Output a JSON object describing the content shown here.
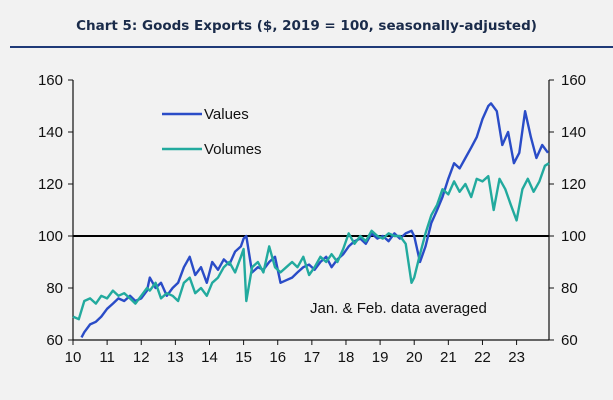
{
  "title": "Chart 5: Goods Exports ($, 2019 = 100, seasonally-adjusted)",
  "colors": {
    "values": "#2a4cc7",
    "volumes": "#22aa9e",
    "background": "#f2f2f2",
    "rule": "#1f3a78"
  },
  "chart_data": {
    "type": "line",
    "title": "Chart 5: Goods Exports ($, 2019 = 100, seasonally-adjusted)",
    "xlabel": "",
    "ylabel": "",
    "xlim": [
      2010,
      2023.95
    ],
    "ylim": [
      60,
      160
    ],
    "yticks": [
      60,
      80,
      100,
      120,
      140,
      160
    ],
    "xtick_labels": [
      "10",
      "11",
      "12",
      "13",
      "14",
      "15",
      "16",
      "17",
      "18",
      "19",
      "20",
      "21",
      "22",
      "23"
    ],
    "reference_line": 100,
    "annotation": "Jan. & Feb. data averaged",
    "legend_position": "upper-left",
    "series": [
      {
        "name": "Values",
        "color": "#2a4cc7",
        "x": [
          2010.25,
          2010.33,
          2010.5,
          2010.67,
          2010.83,
          2011.0,
          2011.17,
          2011.33,
          2011.5,
          2011.67,
          2011.83,
          2012.0,
          2012.17,
          2012.25,
          2012.42,
          2012.58,
          2012.75,
          2012.92,
          2013.08,
          2013.25,
          2013.42,
          2013.58,
          2013.75,
          2013.92,
          2014.08,
          2014.25,
          2014.42,
          2014.58,
          2014.75,
          2014.92,
          2015.0,
          2015.08,
          2015.25,
          2015.42,
          2015.58,
          2015.75,
          2015.92,
          2016.08,
          2016.25,
          2016.42,
          2016.58,
          2016.75,
          2016.92,
          2017.08,
          2017.25,
          2017.42,
          2017.58,
          2017.75,
          2017.92,
          2018.08,
          2018.25,
          2018.42,
          2018.58,
          2018.75,
          2018.92,
          2019.08,
          2019.25,
          2019.42,
          2019.58,
          2019.75,
          2019.92,
          2020.0,
          2020.17,
          2020.33,
          2020.5,
          2020.67,
          2020.83,
          2021.0,
          2021.17,
          2021.33,
          2021.5,
          2021.67,
          2021.83,
          2022.0,
          2022.17,
          2022.25,
          2022.42,
          2022.58,
          2022.75,
          2022.92,
          2023.08,
          2023.25,
          2023.42,
          2023.58,
          2023.75,
          2023.92
        ],
        "values": [
          61,
          63,
          66,
          67,
          69,
          72,
          74,
          76,
          75,
          77,
          75,
          76,
          79,
          84,
          80,
          82,
          77,
          80,
          82,
          88,
          92,
          85,
          88,
          82,
          90,
          87,
          91,
          89,
          94,
          96,
          99,
          100,
          86,
          88,
          87,
          90,
          92,
          82,
          83,
          84,
          86,
          88,
          89,
          87,
          90,
          92,
          88,
          91,
          93,
          96,
          98,
          99,
          97,
          101,
          99,
          100,
          98,
          101,
          99,
          101,
          102,
          100,
          90,
          96,
          105,
          110,
          115,
          122,
          128,
          126,
          130,
          134,
          138,
          145,
          150,
          151,
          148,
          135,
          140,
          128,
          132,
          148,
          138,
          130,
          135,
          132
        ]
      },
      {
        "name": "Volumes",
        "color": "#22aa9e",
        "x": [
          2010.0,
          2010.17,
          2010.33,
          2010.5,
          2010.67,
          2010.83,
          2011.0,
          2011.17,
          2011.33,
          2011.5,
          2011.67,
          2011.83,
          2012.0,
          2012.17,
          2012.25,
          2012.42,
          2012.58,
          2012.75,
          2012.92,
          2013.08,
          2013.25,
          2013.42,
          2013.58,
          2013.75,
          2013.92,
          2014.08,
          2014.25,
          2014.42,
          2014.58,
          2014.75,
          2014.92,
          2015.0,
          2015.08,
          2015.25,
          2015.42,
          2015.58,
          2015.75,
          2015.92,
          2016.08,
          2016.25,
          2016.42,
          2016.58,
          2016.75,
          2016.92,
          2017.08,
          2017.25,
          2017.42,
          2017.58,
          2017.75,
          2017.92,
          2018.08,
          2018.25,
          2018.42,
          2018.58,
          2018.75,
          2018.92,
          2019.08,
          2019.25,
          2019.42,
          2019.58,
          2019.75,
          2019.92,
          2020.0,
          2020.17,
          2020.33,
          2020.5,
          2020.67,
          2020.83,
          2021.0,
          2021.17,
          2021.33,
          2021.5,
          2021.67,
          2021.83,
          2022.0,
          2022.17,
          2022.33,
          2022.5,
          2022.67,
          2022.83,
          2023.0,
          2023.17,
          2023.33,
          2023.5,
          2023.67,
          2023.83,
          2023.95
        ],
        "values": [
          69,
          68,
          75,
          76,
          74,
          77,
          76,
          79,
          77,
          78,
          76,
          74,
          77,
          80,
          79,
          82,
          76,
          78,
          77,
          75,
          82,
          84,
          78,
          80,
          77,
          82,
          84,
          88,
          90,
          86,
          92,
          95,
          75,
          88,
          90,
          86,
          96,
          88,
          86,
          88,
          90,
          88,
          92,
          85,
          88,
          92,
          90,
          93,
          90,
          95,
          101,
          97,
          100,
          98,
          102,
          100,
          99,
          101,
          100,
          100,
          97,
          82,
          84,
          93,
          101,
          108,
          112,
          118,
          116,
          121,
          117,
          120,
          115,
          122,
          121,
          123,
          110,
          122,
          118,
          112,
          106,
          118,
          122,
          117,
          121,
          127,
          128
        ]
      }
    ]
  }
}
